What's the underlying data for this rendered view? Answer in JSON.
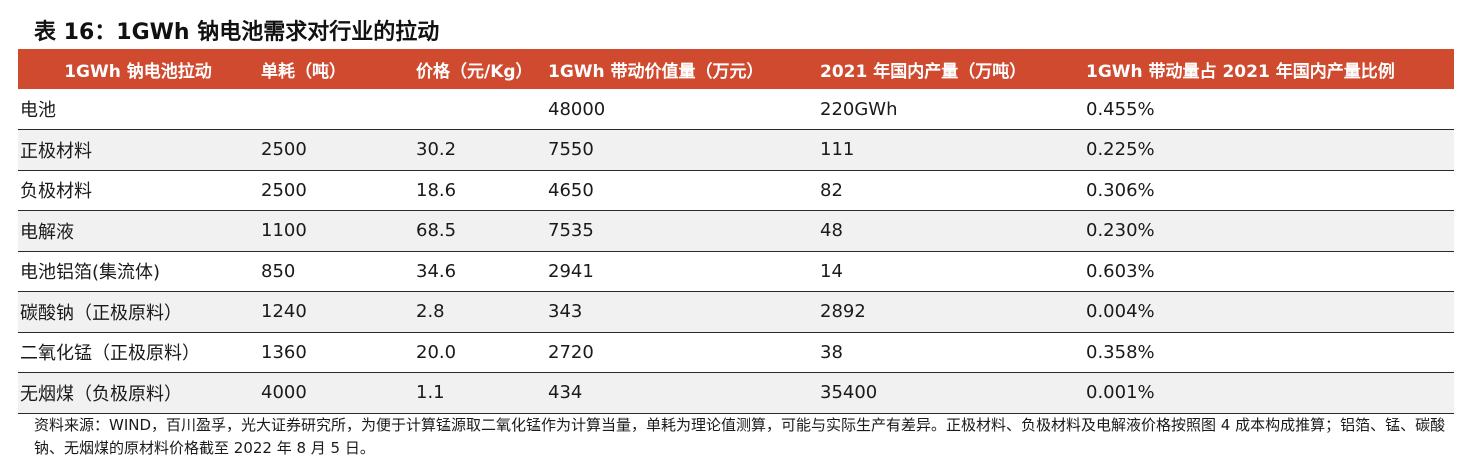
{
  "title": "表 16：1GWh 钠电池需求对行业的拉动",
  "table": {
    "headers": [
      "1GWh 钠电池拉动",
      "单耗（吨）",
      "价格（元/Kg）",
      "1GWh 带动价值量（万元）",
      "2021 年国内产量（万吨）",
      "1GWh 带动量占 2021 年国内产量比例"
    ],
    "rows": [
      [
        "电池",
        "",
        "",
        "48000",
        "220GWh",
        "0.455%"
      ],
      [
        "正极材料",
        "2500",
        "30.2",
        "7550",
        "111",
        "0.225%"
      ],
      [
        "负极材料",
        "2500",
        "18.6",
        "4650",
        "82",
        "0.306%"
      ],
      [
        "电解液",
        "1100",
        "68.5",
        "7535",
        "48",
        "0.230%"
      ],
      [
        "电池铝箔(集流体)",
        "850",
        "34.6",
        "2941",
        "14",
        "0.603%"
      ],
      [
        "碳酸钠（正极原料）",
        "1240",
        "2.8",
        "343",
        "2892",
        "0.004%"
      ],
      [
        "二氧化锰（正极原料）",
        "1360",
        "20.0",
        "2720",
        "38",
        "0.358%"
      ],
      [
        "无烟煤（负极原料）",
        "4000",
        "1.1",
        "434",
        "35400",
        "0.001%"
      ]
    ]
  },
  "footnote": "资料来源：WIND，百川盈孚，光大证券研究所，为便于计算锰源取二氧化锰作为计算当量，单耗为理论值测算，可能与实际生产有差异。正极材料、负极材料及电解液价格按照图 4 成本构成推算；铝箔、锰、碳酸钠、无烟煤的原材料价格截至 2022 年 8 月 5 日。",
  "colors": {
    "header_bg": "#cf4a2f",
    "header_text": "#ffffff",
    "stripe_bg": "#f1f1f1"
  }
}
